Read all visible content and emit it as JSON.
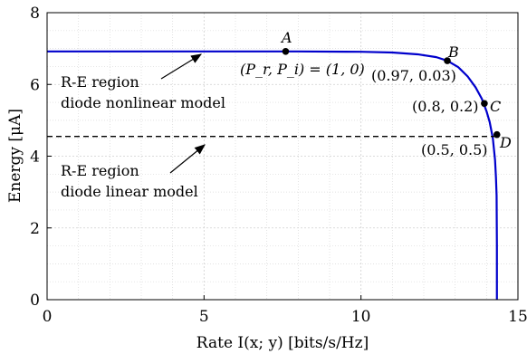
{
  "chart_data": {
    "type": "line",
    "xlabel": "Rate I(x; y) [bits/s/Hz]",
    "ylabel": "Energy [μA]",
    "xlim": [
      0,
      15
    ],
    "ylim": [
      0,
      8
    ],
    "xticks": [
      "0",
      "5",
      "10",
      "15"
    ],
    "yticks": [
      "0",
      "2",
      "4",
      "6",
      "8"
    ],
    "grid": true,
    "minor_grid": true,
    "series": [
      {
        "style": "solid",
        "color": "#0000cc",
        "x": [
          0,
          2,
          4,
          6,
          8,
          10,
          11,
          11.8,
          12.4,
          12.75,
          13.1,
          13.4,
          13.65,
          13.85,
          14.0,
          14.1,
          14.2,
          14.27,
          14.3,
          14.32,
          14.33,
          14.33
        ],
        "y": [
          6.92,
          6.92,
          6.92,
          6.92,
          6.92,
          6.91,
          6.89,
          6.84,
          6.76,
          6.66,
          6.48,
          6.22,
          5.92,
          5.6,
          5.25,
          4.95,
          4.5,
          3.9,
          3.4,
          2.9,
          1.5,
          0
        ]
      },
      {
        "style": "dashed",
        "color": "#000000",
        "x": [
          0,
          14.33
        ],
        "y": [
          4.55,
          4.55
        ]
      }
    ],
    "points": [
      {
        "label": "A",
        "x": 7.6,
        "y": 6.92
      },
      {
        "label": "B",
        "x": 12.75,
        "y": 6.66
      },
      {
        "label": "C",
        "x": 13.93,
        "y": 5.47
      },
      {
        "label": "D",
        "x": 14.33,
        "y": 4.6
      }
    ],
    "annotations": {
      "a_coord": "(P_r, P_i) = (1, 0)",
      "b_coord": "(0.97, 0.03)",
      "c_coord": "(0.8, 0.2)",
      "d_coord": "(0.5, 0.5)",
      "nonlinear_line1": "R-E region",
      "nonlinear_line2": "diode nonlinear model",
      "linear_line1": "R-E region",
      "linear_line2": "diode linear model"
    },
    "colors": {
      "curve": "#0000cc",
      "grid": "#d8d8d8",
      "axis": "#000000"
    }
  }
}
